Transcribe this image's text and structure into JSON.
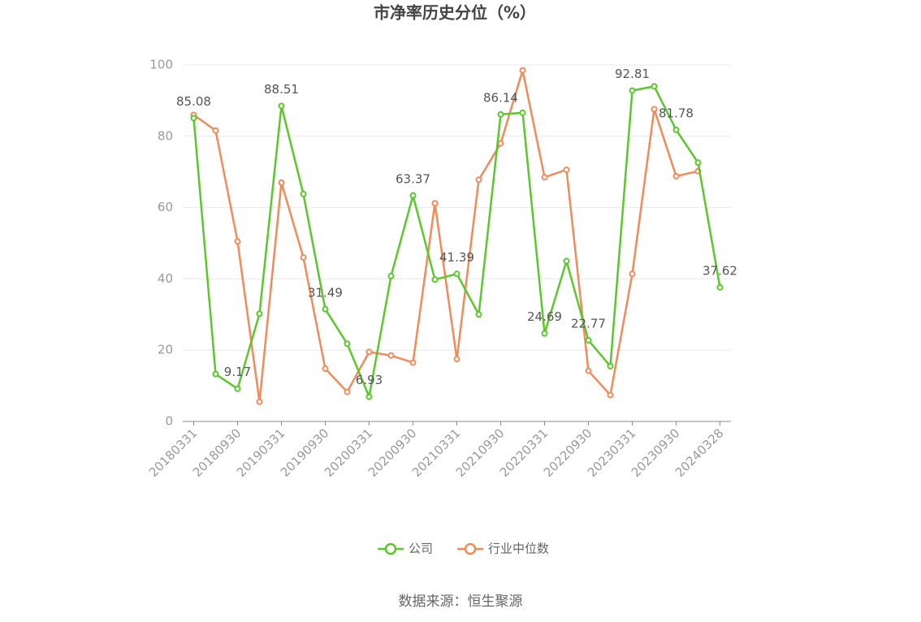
{
  "chart_data": {
    "type": "line",
    "title": "市净率历史分位（%）",
    "categories": [
      "20180331",
      null,
      "20180930",
      null,
      "20190331",
      null,
      "20190930",
      null,
      "20200331",
      null,
      "20200930",
      null,
      "20210331",
      null,
      "20210930",
      null,
      "20220331",
      null,
      "20220930",
      null,
      "20230331",
      null,
      "20230930",
      null,
      "20240328"
    ],
    "series": [
      {
        "name": "公司",
        "color": "#5cc72c",
        "values": [
          85.08,
          13.3,
          9.17,
          30.2,
          88.51,
          63.8,
          31.49,
          21.8,
          6.93,
          40.8,
          63.37,
          39.8,
          41.39,
          30.0,
          86.14,
          86.6,
          24.69,
          45.0,
          22.77,
          15.5,
          92.81,
          94.0,
          81.78,
          72.6,
          37.62
        ],
        "value_labels": [
          "85.08",
          null,
          "9.17",
          null,
          "88.51",
          null,
          "31.49",
          null,
          "6.93",
          null,
          "63.37",
          null,
          "41.39",
          null,
          "86.14",
          null,
          "24.69",
          null,
          "22.77",
          null,
          "92.81",
          null,
          "81.78",
          null,
          "37.62"
        ]
      },
      {
        "name": "行业中位数",
        "color": "#f08b5b",
        "values": [
          86.0,
          81.6,
          50.5,
          5.5,
          67.0,
          46.0,
          14.8,
          8.3,
          19.5,
          18.5,
          16.5,
          61.2,
          17.5,
          67.8,
          78.0,
          98.5,
          68.5,
          70.6,
          14.2,
          7.4,
          41.4,
          87.6,
          68.8,
          70.2,
          null
        ]
      }
    ],
    "ylim": [
      0,
      100
    ],
    "yticks": [
      0,
      20,
      40,
      60,
      80,
      100
    ],
    "grid": true,
    "source": "数据来源：恒生聚源"
  }
}
